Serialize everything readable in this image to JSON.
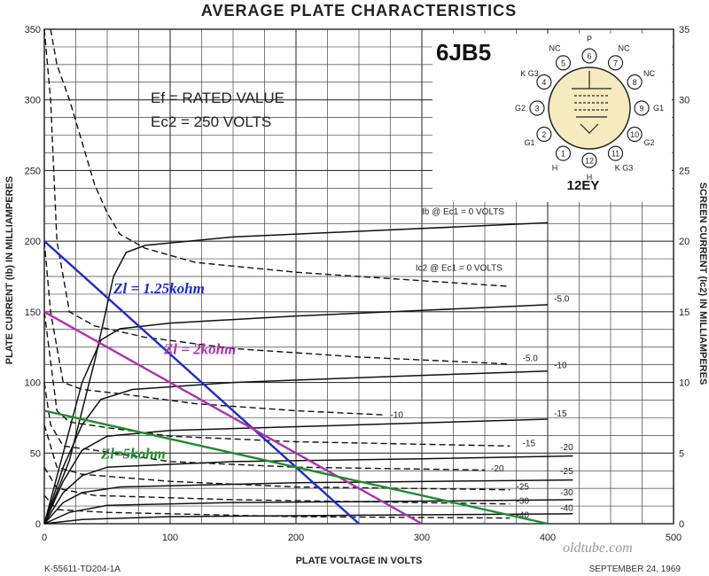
{
  "chart_data": {
    "type": "line",
    "title": "AVERAGE PLATE CHARACTERISTICS",
    "xlabel": "PLATE VOLTAGE IN VOLTS",
    "ylabel": "PLATE CURRENT (Ib) IN MILLIAMPERES",
    "y2label": "SCREEN CURRENT (Ic2) IN MILLIAMPERES",
    "xlim": [
      0,
      500
    ],
    "ylim": [
      0,
      350
    ],
    "y2lim": [
      0,
      35
    ],
    "xticks": [
      0,
      100,
      200,
      300,
      400,
      500
    ],
    "yticks": [
      0,
      50,
      100,
      150,
      200,
      250,
      300,
      350
    ],
    "y2ticks": [
      0,
      5,
      10,
      15,
      20,
      25,
      30,
      35
    ],
    "grid": true,
    "plate_series": [
      {
        "label": "Ib @ Ec1 = 0 VOLTS",
        "label_at": [
          300,
          219
        ],
        "points": [
          [
            0,
            0
          ],
          [
            20,
            45
          ],
          [
            40,
            115
          ],
          [
            55,
            175
          ],
          [
            65,
            192
          ],
          [
            80,
            197
          ],
          [
            150,
            203
          ],
          [
            250,
            207
          ],
          [
            400,
            213
          ]
        ]
      },
      {
        "label": "-5.0",
        "label_at": [
          405,
          157
        ],
        "points": [
          [
            0,
            0
          ],
          [
            15,
            50
          ],
          [
            30,
            100
          ],
          [
            45,
            130
          ],
          [
            60,
            138
          ],
          [
            100,
            142
          ],
          [
            200,
            147
          ],
          [
            300,
            151
          ],
          [
            400,
            155
          ]
        ]
      },
      {
        "label": "-10",
        "label_at": [
          405,
          110
        ],
        "points": [
          [
            0,
            0
          ],
          [
            15,
            40
          ],
          [
            30,
            70
          ],
          [
            45,
            88
          ],
          [
            70,
            95
          ],
          [
            150,
            100
          ],
          [
            300,
            105
          ],
          [
            400,
            108
          ]
        ]
      },
      {
        "label": "-15",
        "label_at": [
          405,
          76
        ],
        "points": [
          [
            0,
            0
          ],
          [
            15,
            30
          ],
          [
            30,
            52
          ],
          [
            50,
            62
          ],
          [
            100,
            66
          ],
          [
            250,
            70
          ],
          [
            400,
            74
          ]
        ]
      },
      {
        "label": "-20",
        "label_at": [
          410,
          52
        ],
        "points": [
          [
            0,
            0
          ],
          [
            15,
            22
          ],
          [
            30,
            34
          ],
          [
            50,
            40
          ],
          [
            150,
            44
          ],
          [
            300,
            46
          ],
          [
            420,
            48
          ]
        ]
      },
      {
        "label": "-25",
        "label_at": [
          410,
          35
        ],
        "points": [
          [
            0,
            0
          ],
          [
            15,
            15
          ],
          [
            30,
            22
          ],
          [
            60,
            26
          ],
          [
            200,
            29
          ],
          [
            420,
            31
          ]
        ]
      },
      {
        "label": "-30",
        "label_at": [
          410,
          20
        ],
        "points": [
          [
            0,
            0
          ],
          [
            20,
            8
          ],
          [
            50,
            13
          ],
          [
            150,
            15
          ],
          [
            300,
            16
          ],
          [
            420,
            17
          ]
        ]
      },
      {
        "label": "-40",
        "label_at": [
          410,
          9
        ],
        "points": [
          [
            0,
            0
          ],
          [
            30,
            3
          ],
          [
            100,
            5
          ],
          [
            250,
            6
          ],
          [
            420,
            7
          ]
        ]
      }
    ],
    "screen_series": [
      {
        "label": "Ic2 @ Ec1 = 0 VOLTS",
        "label_at": [
          295,
          179
        ],
        "points": [
          [
            5,
            350
          ],
          [
            10,
            325
          ],
          [
            20,
            300
          ],
          [
            30,
            270
          ],
          [
            40,
            240
          ],
          [
            50,
            220
          ],
          [
            60,
            205
          ],
          [
            80,
            195
          ],
          [
            120,
            185
          ],
          [
            200,
            178
          ],
          [
            300,
            172
          ],
          [
            370,
            168
          ]
        ]
      },
      {
        "label": "-5.0",
        "label_at": [
          380,
          115
        ],
        "points": [
          [
            0,
            350
          ],
          [
            5,
            300
          ],
          [
            10,
            200
          ],
          [
            20,
            150
          ],
          [
            40,
            140
          ],
          [
            80,
            132
          ],
          [
            150,
            124
          ],
          [
            250,
            118
          ],
          [
            370,
            113
          ]
        ]
      },
      {
        "label": "-10",
        "label_at": [
          275,
          75
        ],
        "points": [
          [
            0,
            200
          ],
          [
            5,
            150
          ],
          [
            15,
            100
          ],
          [
            30,
            95
          ],
          [
            60,
            92
          ],
          [
            120,
            85
          ],
          [
            200,
            80
          ],
          [
            270,
            77
          ]
        ]
      },
      {
        "label": "-15",
        "label_at": [
          380,
          55
        ],
        "points": [
          [
            0,
            150
          ],
          [
            10,
            80
          ],
          [
            20,
            72
          ],
          [
            50,
            68
          ],
          [
            100,
            62
          ],
          [
            200,
            58
          ],
          [
            370,
            55
          ]
        ]
      },
      {
        "label": "-20",
        "label_at": [
          355,
          37
        ],
        "points": [
          [
            0,
            100
          ],
          [
            5,
            70
          ],
          [
            15,
            55
          ],
          [
            40,
            52
          ],
          [
            100,
            44
          ],
          [
            200,
            40
          ],
          [
            350,
            38
          ]
        ]
      },
      {
        "label": "-25",
        "label_at": [
          375,
          24
        ],
        "points": [
          [
            0,
            70
          ],
          [
            10,
            40
          ],
          [
            30,
            35
          ],
          [
            100,
            30
          ],
          [
            200,
            26
          ],
          [
            370,
            24
          ]
        ]
      },
      {
        "label": "-30",
        "label_at": [
          375,
          14
        ],
        "points": [
          [
            0,
            40
          ],
          [
            10,
            25
          ],
          [
            40,
            20
          ],
          [
            150,
            17
          ],
          [
            370,
            14
          ]
        ]
      },
      {
        "label": "-40",
        "label_at": [
          375,
          4
        ],
        "points": [
          [
            0,
            20
          ],
          [
            10,
            10
          ],
          [
            50,
            8
          ],
          [
            200,
            5
          ],
          [
            370,
            4
          ]
        ]
      }
    ],
    "load_lines": [
      {
        "name": "Zl = 1.25kohm",
        "color": "#1a2ccc",
        "label_at": [
          55,
          163
        ],
        "points": [
          [
            0,
            200
          ],
          [
            250,
            0
          ]
        ]
      },
      {
        "name": "Zl = 2kohm",
        "color": "#b030b0",
        "label_at": [
          95,
          120
        ],
        "points": [
          [
            0,
            150
          ],
          [
            300,
            0
          ]
        ]
      },
      {
        "name": "Zl=5kohm",
        "color": "#1f8c2e",
        "label_at": [
          45,
          46
        ],
        "points": [
          [
            0,
            80
          ],
          [
            400,
            0
          ]
        ]
      }
    ]
  },
  "annotations": {
    "ef": "Ef = RATED VALUE",
    "ec2": "Ec2 = 250 VOLTS",
    "tube_type": "6JB5",
    "base": "12EY"
  },
  "pins": [
    {
      "num": "1",
      "name": "H"
    },
    {
      "num": "2",
      "name": "G1"
    },
    {
      "num": "3",
      "name": "G2"
    },
    {
      "num": "4",
      "name": "K G3"
    },
    {
      "num": "5",
      "name": "NC"
    },
    {
      "num": "6",
      "name": "P"
    },
    {
      "num": "7",
      "name": "NC"
    },
    {
      "num": "8",
      "name": "NC"
    },
    {
      "num": "9",
      "name": "G1"
    },
    {
      "num": "10",
      "name": "G2"
    },
    {
      "num": "11",
      "name": "K G3"
    },
    {
      "num": "12",
      "name": "H"
    }
  ],
  "footer": {
    "left": "K-55611-TD204-1A",
    "right": "SEPTEMBER 24, 1969"
  },
  "watermark": "oldtube.com"
}
